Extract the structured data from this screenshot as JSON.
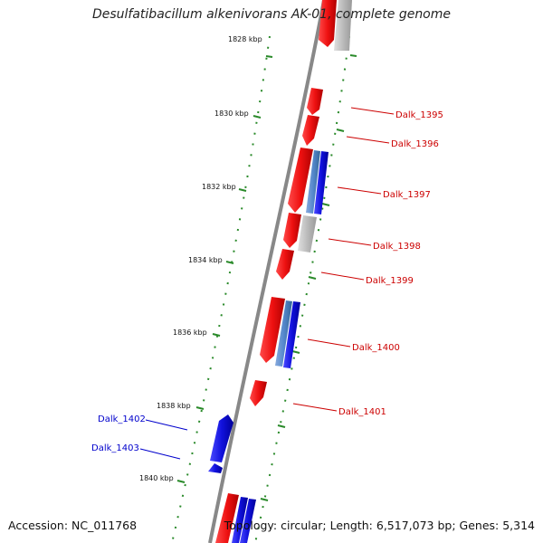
{
  "title": "Desulfatibacillum alkenivorans AK-01, complete genome",
  "accession": "Accession: NC_011768",
  "genome_info": "Topology: circular; Length: 6,517,073 bp; Genes: 5,314",
  "colors": {
    "forward_gene": "#ee1111",
    "reverse_gene": "#1111dd",
    "rna_gene": "#bbbbbb",
    "light_blue_gene": "#5588cc",
    "backbone": "#888888",
    "tick_green": "#2a8a2a",
    "label_red": "#cc0000",
    "label_blue": "#0000cc"
  },
  "scale_labels": [
    "1828 kbp",
    "1830 kbp",
    "1832 kbp",
    "1834 kbp",
    "1836 kbp",
    "1838 kbp",
    "1840 kbp"
  ],
  "genes_right": [
    "Dalk_1395",
    "Dalk_1396",
    "Dalk_1397",
    "Dalk_1398",
    "Dalk_1399",
    "Dalk_1400",
    "Dalk_1401"
  ],
  "genes_left": [
    "Dalk_1402",
    "Dalk_1403"
  ]
}
